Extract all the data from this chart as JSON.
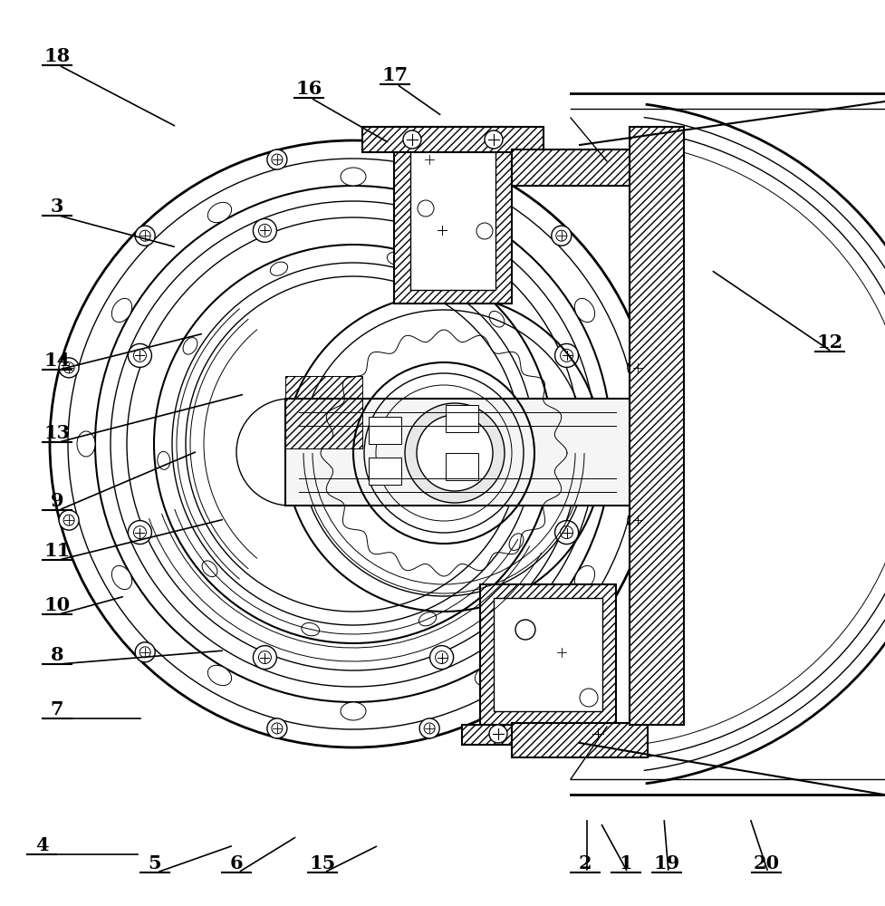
{
  "bg_color": "#ffffff",
  "line_color": "#000000",
  "figsize": [
    9.77,
    10.0
  ],
  "dpi": 100,
  "annotations": [
    [
      "18",
      55,
      72,
      195,
      140
    ],
    [
      "3",
      55,
      238,
      195,
      273
    ],
    [
      "16",
      333,
      108,
      430,
      158
    ],
    [
      "17",
      428,
      93,
      488,
      128
    ],
    [
      "12",
      908,
      388,
      785,
      298
    ],
    [
      "14",
      55,
      408,
      225,
      368
    ],
    [
      "13",
      55,
      488,
      270,
      435
    ],
    [
      "9",
      55,
      563,
      218,
      498
    ],
    [
      "11",
      55,
      618,
      248,
      573
    ],
    [
      "10",
      55,
      678,
      138,
      658
    ],
    [
      "8",
      55,
      733,
      248,
      718
    ],
    [
      "7",
      55,
      793,
      158,
      793
    ],
    [
      "4",
      38,
      943,
      155,
      943
    ],
    [
      "5",
      163,
      963,
      258,
      933
    ],
    [
      "6",
      253,
      963,
      328,
      923
    ],
    [
      "15",
      348,
      963,
      418,
      933
    ],
    [
      "2",
      638,
      963,
      648,
      903
    ],
    [
      "1",
      683,
      963,
      663,
      908
    ],
    [
      "19",
      728,
      963,
      733,
      903
    ],
    [
      "20",
      838,
      963,
      828,
      903
    ]
  ]
}
